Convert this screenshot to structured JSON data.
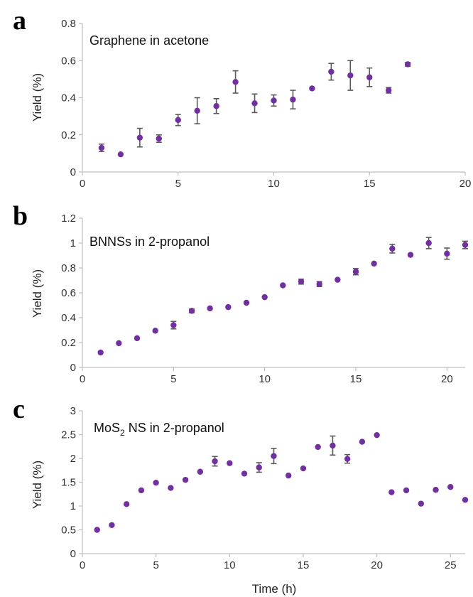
{
  "chart_data": [
    {
      "type": "scatter",
      "panel_label": "a",
      "title": "Graphene in acetone",
      "ylabel": "Yield (%)",
      "xlabel": "",
      "xlim": [
        0,
        20
      ],
      "ylim": [
        0,
        0.8
      ],
      "xticks": [
        0,
        5,
        10,
        15,
        20
      ],
      "yticks": [
        0,
        0.2,
        0.4,
        0.6,
        0.8
      ],
      "x_ticklabels": [
        "0",
        "5",
        "10",
        "15",
        "20"
      ],
      "y_ticklabels": [
        "0",
        "0.2",
        "0.4",
        "0.6",
        "0.8"
      ],
      "grid": false,
      "marker_color": "#7030a0",
      "errorbar_color": "#595959",
      "points": [
        {
          "x": 1,
          "y": 0.13,
          "err": 0.02
        },
        {
          "x": 2,
          "y": 0.095,
          "err": 0
        },
        {
          "x": 3,
          "y": 0.185,
          "err": 0.05
        },
        {
          "x": 4,
          "y": 0.18,
          "err": 0.02
        },
        {
          "x": 5,
          "y": 0.28,
          "err": 0.03
        },
        {
          "x": 6,
          "y": 0.33,
          "err": 0.07
        },
        {
          "x": 7,
          "y": 0.355,
          "err": 0.04
        },
        {
          "x": 8,
          "y": 0.485,
          "err": 0.06
        },
        {
          "x": 9,
          "y": 0.37,
          "err": 0.05
        },
        {
          "x": 10,
          "y": 0.385,
          "err": 0.03
        },
        {
          "x": 11,
          "y": 0.39,
          "err": 0.05
        },
        {
          "x": 12,
          "y": 0.45,
          "err": 0
        },
        {
          "x": 13,
          "y": 0.54,
          "err": 0.045
        },
        {
          "x": 14,
          "y": 0.52,
          "err": 0.08
        },
        {
          "x": 15,
          "y": 0.51,
          "err": 0.05
        },
        {
          "x": 16,
          "y": 0.44,
          "err": 0.015
        },
        {
          "x": 17,
          "y": 0.58,
          "err": 0.01
        }
      ]
    },
    {
      "type": "scatter",
      "panel_label": "b",
      "title": "BNNSs in 2-propanol",
      "ylabel": "Yield (%)",
      "xlabel": "",
      "xlim": [
        0,
        21
      ],
      "ylim": [
        0,
        1.2
      ],
      "xticks": [
        0,
        5,
        10,
        15,
        20
      ],
      "yticks": [
        0,
        0.2,
        0.4,
        0.6,
        0.8,
        1,
        1.2
      ],
      "x_ticklabels": [
        "0",
        "5",
        "10",
        "15",
        "20"
      ],
      "y_ticklabels": [
        "0",
        "0.2",
        "0.4",
        "0.6",
        "0.8",
        "1",
        "1.2"
      ],
      "grid": false,
      "marker_color": "#7030a0",
      "errorbar_color": "#595959",
      "points": [
        {
          "x": 1,
          "y": 0.12,
          "err": 0
        },
        {
          "x": 2,
          "y": 0.195,
          "err": 0
        },
        {
          "x": 3,
          "y": 0.235,
          "err": 0
        },
        {
          "x": 4,
          "y": 0.295,
          "err": 0
        },
        {
          "x": 5,
          "y": 0.34,
          "err": 0.03
        },
        {
          "x": 6,
          "y": 0.455,
          "err": 0.015
        },
        {
          "x": 7,
          "y": 0.475,
          "err": 0
        },
        {
          "x": 8,
          "y": 0.485,
          "err": 0
        },
        {
          "x": 9,
          "y": 0.52,
          "err": 0
        },
        {
          "x": 10,
          "y": 0.565,
          "err": 0
        },
        {
          "x": 11,
          "y": 0.66,
          "err": 0
        },
        {
          "x": 12,
          "y": 0.69,
          "err": 0.02
        },
        {
          "x": 13,
          "y": 0.67,
          "err": 0.02
        },
        {
          "x": 14,
          "y": 0.705,
          "err": 0
        },
        {
          "x": 15,
          "y": 0.77,
          "err": 0.025
        },
        {
          "x": 16,
          "y": 0.835,
          "err": 0
        },
        {
          "x": 17,
          "y": 0.955,
          "err": 0.035
        },
        {
          "x": 18,
          "y": 0.905,
          "err": 0
        },
        {
          "x": 19,
          "y": 1.0,
          "err": 0.045
        },
        {
          "x": 20,
          "y": 0.915,
          "err": 0.045
        },
        {
          "x": 21,
          "y": 0.985,
          "err": 0.03
        }
      ]
    },
    {
      "type": "scatter",
      "panel_label": "c",
      "title": "MoS",
      "title_subscript": "2",
      "title_suffix": " NS in 2-propanol",
      "ylabel": "Yield (%)",
      "xlabel": "Time (h)",
      "xlim": [
        0,
        26
      ],
      "ylim": [
        0,
        3
      ],
      "xticks": [
        0,
        5,
        10,
        15,
        20,
        25
      ],
      "yticks": [
        0,
        0.5,
        1,
        1.5,
        2,
        2.5,
        3
      ],
      "x_ticklabels": [
        "0",
        "5",
        "10",
        "15",
        "20",
        "25"
      ],
      "y_ticklabels": [
        "0",
        "0.5",
        "1",
        "1.5",
        "2",
        "2.5",
        "3"
      ],
      "grid": false,
      "marker_color": "#7030a0",
      "errorbar_color": "#595959",
      "points": [
        {
          "x": 1,
          "y": 0.5,
          "err": 0
        },
        {
          "x": 2,
          "y": 0.6,
          "err": 0
        },
        {
          "x": 3,
          "y": 1.04,
          "err": 0
        },
        {
          "x": 4,
          "y": 1.33,
          "err": 0
        },
        {
          "x": 5,
          "y": 1.49,
          "err": 0
        },
        {
          "x": 6,
          "y": 1.38,
          "err": 0
        },
        {
          "x": 7,
          "y": 1.55,
          "err": 0
        },
        {
          "x": 8,
          "y": 1.72,
          "err": 0
        },
        {
          "x": 9,
          "y": 1.94,
          "err": 0.1
        },
        {
          "x": 10,
          "y": 1.9,
          "err": 0
        },
        {
          "x": 11,
          "y": 1.68,
          "err": 0
        },
        {
          "x": 12,
          "y": 1.81,
          "err": 0.1
        },
        {
          "x": 13,
          "y": 2.05,
          "err": 0.16
        },
        {
          "x": 14,
          "y": 1.64,
          "err": 0
        },
        {
          "x": 15,
          "y": 1.79,
          "err": 0
        },
        {
          "x": 16,
          "y": 2.24,
          "err": 0
        },
        {
          "x": 17,
          "y": 2.27,
          "err": 0.2
        },
        {
          "x": 18,
          "y": 1.99,
          "err": 0.09
        },
        {
          "x": 19,
          "y": 2.35,
          "err": 0
        },
        {
          "x": 20,
          "y": 2.49,
          "err": 0
        },
        {
          "x": 21,
          "y": 1.29,
          "err": 0
        },
        {
          "x": 22,
          "y": 1.33,
          "err": 0
        },
        {
          "x": 23,
          "y": 1.05,
          "err": 0
        },
        {
          "x": 24,
          "y": 1.34,
          "err": 0
        },
        {
          "x": 25,
          "y": 1.4,
          "err": 0
        },
        {
          "x": 26,
          "y": 1.13,
          "err": 0
        }
      ]
    }
  ]
}
